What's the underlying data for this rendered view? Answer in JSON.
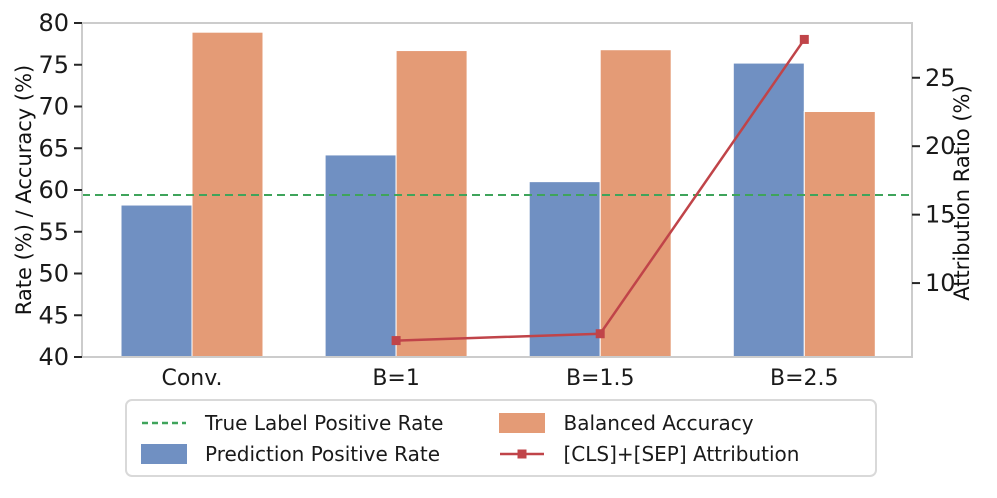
{
  "chart_data": {
    "type": "bar",
    "title": "",
    "categories": [
      "Conv.",
      "B=1",
      "B=1.5",
      "B=2.5"
    ],
    "series": [
      {
        "name": "Prediction Positive Rate",
        "type": "bar",
        "axis": "left",
        "color": "#7090c2",
        "values": [
          58.2,
          64.2,
          61.0,
          75.2
        ]
      },
      {
        "name": "Balanced Accuracy",
        "type": "bar",
        "axis": "left",
        "color": "#e49b76",
        "values": [
          78.9,
          76.7,
          76.8,
          69.4
        ]
      },
      {
        "name": "True Label Positive Rate",
        "type": "hline",
        "axis": "left",
        "color": "#3fa45b",
        "value": 59.4
      },
      {
        "name": "[CLS]+[SEP] Attribution",
        "type": "line",
        "axis": "right",
        "color": "#c04449",
        "values": [
          null,
          5.8,
          6.3,
          27.8
        ]
      }
    ],
    "left_axis": {
      "label": "Rate (%) / Accuracy (%)",
      "ticks": [
        40,
        45,
        50,
        55,
        60,
        65,
        70,
        75,
        80
      ],
      "lim": [
        40,
        80
      ]
    },
    "right_axis": {
      "label": "Attribution Ratio (%)",
      "ticks": [
        10,
        15,
        20,
        25
      ],
      "lim": [
        4.6,
        29.0
      ]
    },
    "grid": false,
    "legend_position": "bottom",
    "spine_color": "#cccccc",
    "tick_color": "#262626"
  },
  "legend": {
    "items": [
      {
        "label": "True Label Positive Rate",
        "handle": "dashed-line",
        "color": "#3fa45b"
      },
      {
        "label": "Prediction Positive Rate",
        "handle": "bar",
        "color": "#7090c2"
      },
      {
        "label": "Balanced Accuracy",
        "handle": "bar",
        "color": "#e49b76"
      },
      {
        "label": "[CLS]+[SEP] Attribution",
        "handle": "line-marker",
        "color": "#c04449"
      }
    ]
  }
}
